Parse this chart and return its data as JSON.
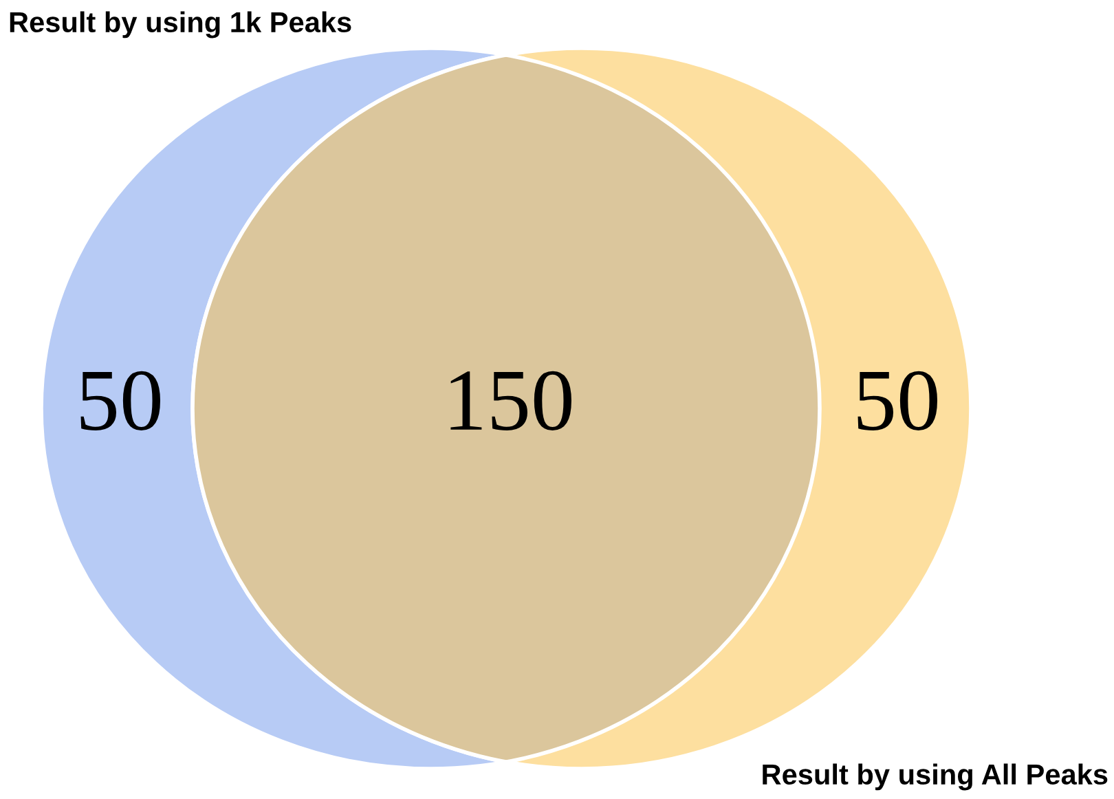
{
  "chart_data": {
    "type": "other",
    "categories": [
      null,
      null,
      null
    ],
    "values": [
      50,
      150,
      50
    ],
    "data_labels": true,
    "colors": [
      "#b7cbf5",
      "#dbc69c",
      "#fddf9f"
    ],
    "annotations": [
      "Result by using 1k Peaks",
      "Result by using All Peaks"
    ]
  }
}
